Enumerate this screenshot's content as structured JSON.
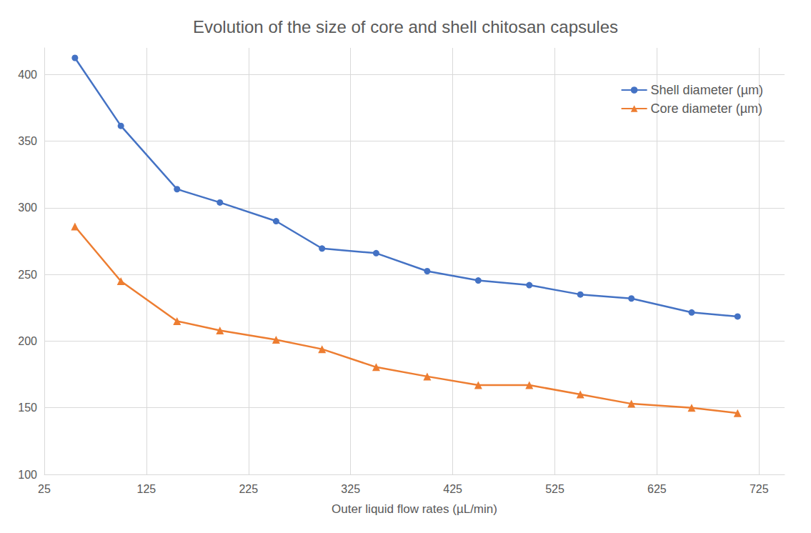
{
  "chart_data": {
    "type": "line",
    "title": "Evolution of the size of core and shell chitosan capsules",
    "x_label": "Outer liquid flow rates (µL/min)",
    "x": [
      55,
      100,
      155,
      197,
      252,
      297,
      350,
      400,
      450,
      500,
      550,
      600,
      659,
      704
    ],
    "series": [
      {
        "name": "Shell diameter (µm)",
        "color": "#4472c4",
        "marker": "circle",
        "values": [
          412.5,
          361.5,
          314,
          304,
          290,
          269.5,
          266,
          252.5,
          245.5,
          242,
          235,
          232,
          221.5,
          218.5
        ]
      },
      {
        "name": "Core diameter (µm)",
        "color": "#ed7d31",
        "marker": "triangle",
        "values": [
          286,
          245,
          215,
          208,
          201,
          194,
          180.5,
          173.5,
          167,
          167,
          160,
          153,
          150,
          146
        ]
      }
    ],
    "xlim": [
      25,
      750
    ],
    "xticks": [
      25,
      125,
      225,
      325,
      425,
      525,
      625,
      725
    ],
    "ylim": [
      100,
      420
    ],
    "yticks": [
      100,
      150,
      200,
      250,
      300,
      350,
      400
    ],
    "grid": true,
    "legend": "top-right"
  }
}
